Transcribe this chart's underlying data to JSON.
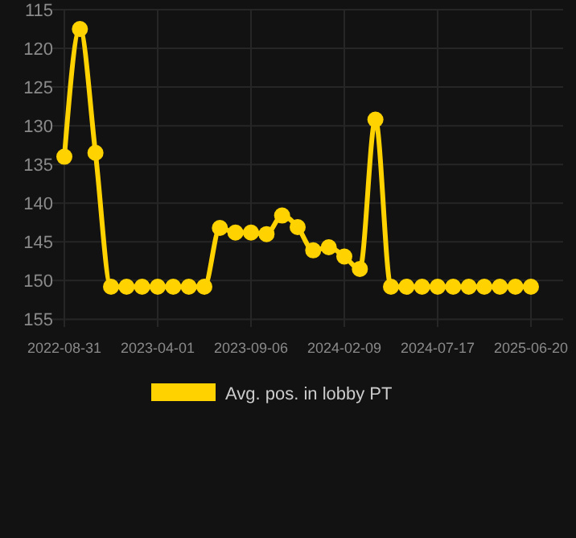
{
  "chart_data": {
    "type": "line",
    "categories": [
      "2022-08-31",
      null,
      null,
      null,
      null,
      null,
      "2023-04-01",
      null,
      null,
      null,
      null,
      null,
      "2023-09-06",
      null,
      null,
      null,
      null,
      null,
      "2024-02-09",
      null,
      null,
      null,
      null,
      null,
      "2024-07-17",
      null,
      null,
      null,
      null,
      null,
      "2025-06-20"
    ],
    "series": [
      {
        "name": "Avg. pos. in lobby PT",
        "color": "#ffd200",
        "values": [
          134,
          117.5,
          133.5,
          150.8,
          150.8,
          150.8,
          150.8,
          150.8,
          150.8,
          150.8,
          143.2,
          143.8,
          143.8,
          144,
          141.6,
          143.1,
          146.1,
          145.7,
          146.9,
          148.5,
          129.2,
          150.8,
          150.8,
          150.8,
          150.8,
          150.8,
          150.8,
          150.8,
          150.8,
          150.8,
          150.8
        ]
      }
    ],
    "ylim": [
      156,
      115
    ],
    "yticks": [
      115,
      120,
      125,
      130,
      135,
      140,
      145,
      150,
      155
    ],
    "grid": true,
    "legend": "bottom",
    "marker": "circle",
    "line_style": "solid"
  }
}
